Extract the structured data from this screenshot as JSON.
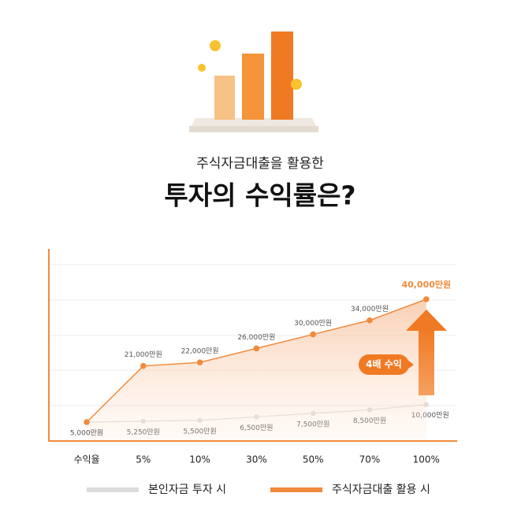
{
  "chart_data": {
    "type": "line",
    "subtitle": "주식자금대출을 활용한",
    "title": "투자의 수익률은?",
    "categories": [
      "수익율",
      "5%",
      "10%",
      "30%",
      "50%",
      "70%",
      "100%"
    ],
    "series": [
      {
        "name": "본인자금 투자 시",
        "color": "#dcdcdc",
        "values": [
          5000,
          5250,
          5500,
          6500,
          7500,
          8500,
          10000
        ],
        "value_labels": [
          "5,000만원",
          "5,250만원",
          "5,500만원",
          "6,500만원",
          "7,500만원",
          "8,500만원",
          "10,000만원"
        ]
      },
      {
        "name": "주식자금대출 활용 시",
        "color": "#f08a3c",
        "values": [
          5000,
          21000,
          22000,
          26000,
          30000,
          34000,
          40000
        ],
        "value_labels": [
          "5,000만원",
          "21,000만원",
          "22,000만원",
          "26,000만원",
          "30,000만원",
          "34,000만원",
          "40,000만원"
        ]
      }
    ],
    "annotation": "4배 수익"
  }
}
